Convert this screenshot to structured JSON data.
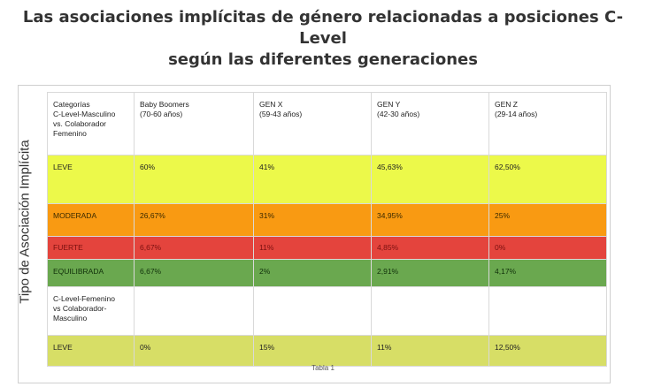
{
  "title": {
    "line1": "Las asociaciones implícitas de género relacionadas a posiciones C-Level",
    "line2": "según las diferentes generaciones"
  },
  "y_axis_label": "Tipo de Asociación Implícita",
  "caption": "Tabla 1",
  "table": {
    "header1": {
      "category": "Categorías\nC-Level-Masculino\nvs. Colaborador\nFemenino",
      "generations": [
        "Baby Boomers\n(70-60 años)",
        "GEN X\n(59-43 años)",
        "GEN Y\n(42-30 años)",
        "GEN Z\n(29-14 años)"
      ]
    },
    "rows1": [
      {
        "label": "LEVE",
        "values": [
          "60%",
          "41%",
          "45,63%",
          "62,50%"
        ]
      },
      {
        "label": "MODERADA",
        "values": [
          "26,67%",
          "31%",
          "34,95%",
          "25%"
        ]
      },
      {
        "label": "FUERTE",
        "values": [
          "6,67%",
          "11%",
          "4,85%",
          "0%"
        ]
      },
      {
        "label": "EQUILIBRADA",
        "values": [
          "6,67%",
          "2%",
          "2,91%",
          "4,17%"
        ]
      }
    ],
    "header2": {
      "category": "C-Level-Femenino\nvs Colaborador-\nMasculino"
    },
    "rows2": [
      {
        "label": "LEVE",
        "values": [
          "0%",
          "15%",
          "11%",
          "12,50%"
        ]
      }
    ]
  },
  "colors": {
    "leve": "#ecf94a",
    "moderada": "#f99a12",
    "fuerte": "#e4443d",
    "equilibrada": "#6aa84f",
    "leve2": "#d7de66"
  }
}
